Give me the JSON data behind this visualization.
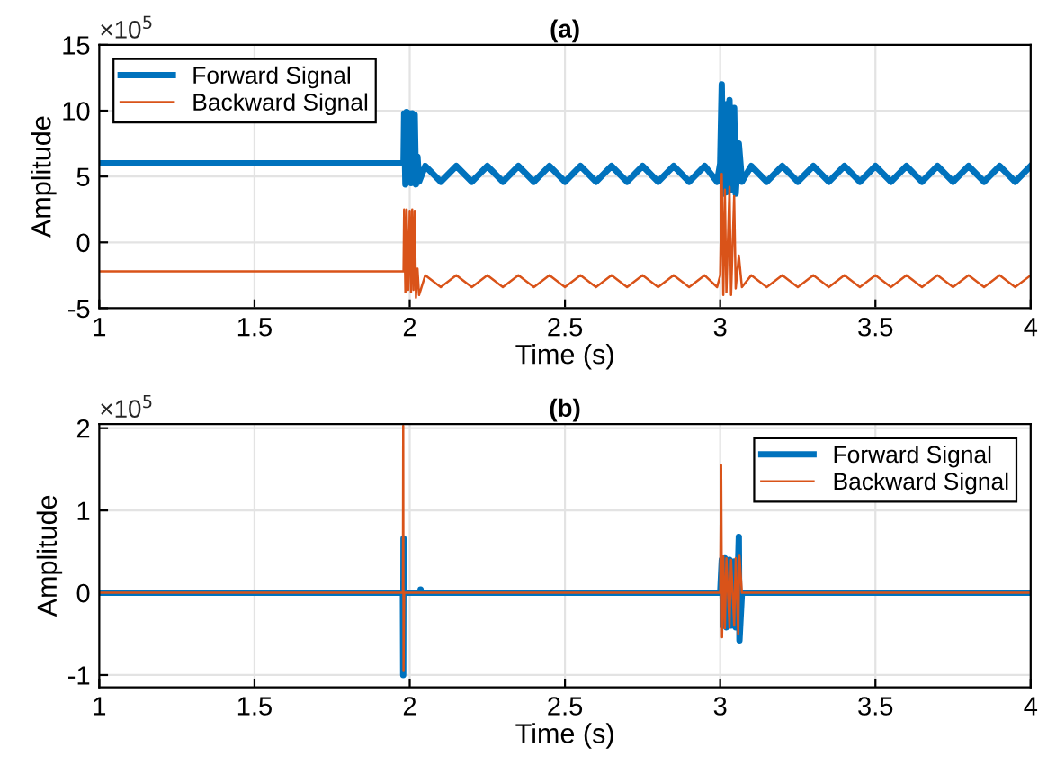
{
  "chart_data": [
    {
      "type": "line",
      "title": "(a)",
      "xlabel": "Time (s)",
      "ylabel": "Amplitude",
      "annotations": [
        "×10$^{5}$"
      ],
      "xlim": [
        1,
        4
      ],
      "xticks": [
        1,
        1.5,
        2,
        2.5,
        3,
        3.5,
        4
      ],
      "ylim": [
        -5,
        15
      ],
      "yticks": [
        -5,
        0,
        5,
        10,
        15
      ],
      "grid": true,
      "legend": "top left",
      "line_style": "solid",
      "marker": "none",
      "series": [
        {
          "name": "Forward Signal",
          "color": "#0072bd",
          "x": [
            1,
            1.98,
            1.982,
            1.986,
            1.99,
            1.995,
            2.0,
            2.004,
            2.008,
            2.012,
            2.016,
            2.02,
            2.025,
            2.03,
            2.05,
            2.1,
            2.15,
            2.2,
            2.25,
            2.3,
            2.35,
            2.4,
            2.45,
            2.5,
            2.55,
            2.6,
            2.65,
            2.7,
            2.75,
            2.8,
            2.85,
            2.9,
            2.95,
            2.99,
            3.0,
            3.005,
            3.01,
            3.015,
            3.02,
            3.03,
            3.035,
            3.045,
            3.05,
            3.06,
            3.07,
            3.1,
            3.15,
            3.2,
            3.25,
            3.3,
            3.35,
            3.4,
            3.45,
            3.5,
            3.55,
            3.6,
            3.65,
            3.7,
            3.75,
            3.8,
            3.85,
            3.9,
            3.95,
            4.0
          ],
          "values": [
            6.0,
            6.0,
            9.8,
            4.4,
            9.9,
            4.6,
            9.8,
            4.5,
            9.8,
            4.6,
            9.7,
            4.4,
            6.5,
            4.6,
            5.8,
            4.6,
            5.8,
            4.6,
            5.8,
            4.6,
            5.8,
            4.6,
            5.8,
            4.6,
            5.8,
            4.6,
            5.8,
            4.6,
            5.8,
            4.6,
            5.8,
            4.6,
            5.8,
            4.6,
            6.0,
            12.0,
            3.7,
            10.5,
            3.8,
            10.8,
            4.0,
            10.2,
            3.7,
            7.5,
            4.6,
            5.8,
            4.6,
            5.8,
            4.6,
            5.8,
            4.6,
            5.8,
            4.6,
            5.8,
            4.6,
            5.8,
            4.6,
            5.8,
            4.6,
            5.8,
            4.6,
            5.8,
            4.6,
            5.8
          ]
        },
        {
          "name": "Backward Signal",
          "color": "#d95319",
          "x": [
            1,
            1.98,
            1.982,
            1.986,
            1.99,
            1.995,
            2.0,
            2.004,
            2.008,
            2.012,
            2.016,
            2.02,
            2.025,
            2.03,
            2.05,
            2.1,
            2.15,
            2.2,
            2.25,
            2.3,
            2.35,
            2.4,
            2.45,
            2.5,
            2.55,
            2.6,
            2.65,
            2.7,
            2.75,
            2.8,
            2.85,
            2.9,
            2.95,
            2.99,
            3.0,
            3.005,
            3.01,
            3.015,
            3.02,
            3.03,
            3.035,
            3.045,
            3.05,
            3.06,
            3.07,
            3.1,
            3.15,
            3.2,
            3.25,
            3.3,
            3.35,
            3.4,
            3.45,
            3.5,
            3.55,
            3.6,
            3.65,
            3.7,
            3.75,
            3.8,
            3.85,
            3.9,
            3.95,
            4.0
          ],
          "values": [
            -2.2,
            -2.2,
            2.5,
            -3.8,
            2.5,
            -3.6,
            2.4,
            -3.8,
            2.5,
            -3.6,
            2.4,
            -4.2,
            -2.0,
            -4.0,
            -2.5,
            -3.4,
            -2.5,
            -3.4,
            -2.5,
            -3.4,
            -2.5,
            -3.4,
            -2.5,
            -3.4,
            -2.5,
            -3.4,
            -2.5,
            -3.4,
            -2.5,
            -3.4,
            -2.5,
            -3.4,
            -2.5,
            -3.4,
            -2.5,
            5.2,
            -4.0,
            4.0,
            -3.8,
            4.2,
            -4.0,
            3.5,
            -3.5,
            -1.0,
            -3.4,
            -2.5,
            -3.4,
            -2.5,
            -3.4,
            -2.5,
            -3.4,
            -2.5,
            -3.4,
            -2.5,
            -3.4,
            -2.5,
            -3.4,
            -2.5,
            -3.4,
            -2.5,
            -3.4,
            -2.5,
            -3.4,
            -2.5
          ]
        }
      ]
    },
    {
      "type": "line",
      "title": "(b)",
      "xlabel": "Time (s)",
      "ylabel": "Amplitude",
      "annotations": [
        "×10$^{5}$"
      ],
      "xlim": [
        1,
        4
      ],
      "xticks": [
        1,
        1.5,
        2,
        2.5,
        3,
        3.5,
        4
      ],
      "ylim": [
        -1.15,
        2.05
      ],
      "yticks": [
        -1,
        0,
        1,
        2
      ],
      "grid": true,
      "legend": "top right",
      "line_style": "solid",
      "marker": "none",
      "series": [
        {
          "name": "Forward Signal",
          "color": "#0072bd",
          "x": [
            1,
            1.978,
            1.979,
            1.98,
            1.982,
            2.034,
            2.035,
            2.036,
            3.0,
            3.005,
            3.01,
            3.015,
            3.02,
            3.03,
            3.035,
            3.045,
            3.05,
            3.058,
            3.06,
            3.062,
            3.07,
            4.0
          ],
          "values": [
            0,
            0,
            -1.0,
            0.66,
            0,
            0,
            0.04,
            0,
            0,
            0.4,
            -0.4,
            0.42,
            -0.42,
            0.4,
            -0.4,
            0.38,
            -0.42,
            0.4,
            0.68,
            -0.58,
            0,
            0
          ]
        },
        {
          "name": "Backward Signal",
          "color": "#d95319",
          "x": [
            1,
            1.978,
            1.979,
            1.98,
            1.982,
            3.0,
            3.003,
            3.006,
            3.01,
            3.015,
            3.02,
            3.03,
            3.035,
            3.045,
            3.05,
            3.058,
            3.062,
            3.07,
            4.0
          ],
          "values": [
            0,
            0,
            2.03,
            -0.95,
            0,
            0,
            1.55,
            -0.54,
            0.44,
            -0.43,
            0.42,
            -0.42,
            0.4,
            -0.4,
            0.42,
            -0.5,
            0.45,
            0,
            0
          ]
        }
      ]
    }
  ]
}
